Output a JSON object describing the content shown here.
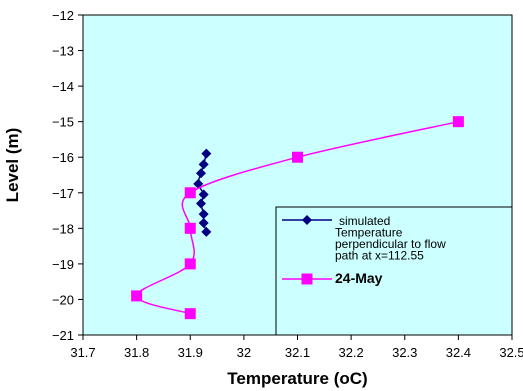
{
  "chart_data": {
    "type": "scatter",
    "title": "",
    "xlabel": "Temperature (oC)",
    "ylabel": "Level (m)",
    "xlim": [
      31.7,
      32.5
    ],
    "ylim": [
      -21,
      -12
    ],
    "x_ticks": [
      "31.7",
      "31.8",
      "31.9",
      "32",
      "32.1",
      "32.2",
      "32.3",
      "32.4",
      "32.5"
    ],
    "y_ticks": [
      "-12",
      "-13",
      "-14",
      "-15",
      "-16",
      "-17",
      "-18",
      "-19",
      "-20",
      "-21"
    ],
    "grid": false,
    "legend_position": "bottom-right",
    "plot_background": "#ccffff",
    "series": [
      {
        "name_lines": [
          "simulated",
          "Temperature",
          "perpendicular to flow",
          "path at x=112.55"
        ],
        "color": "#000080",
        "marker": "diamond",
        "points": [
          {
            "x": 31.93,
            "y": -15.9
          },
          {
            "x": 31.925,
            "y": -16.2
          },
          {
            "x": 31.92,
            "y": -16.45
          },
          {
            "x": 31.915,
            "y": -16.75
          },
          {
            "x": 31.925,
            "y": -17.05
          },
          {
            "x": 31.92,
            "y": -17.3
          },
          {
            "x": 31.925,
            "y": -17.6
          },
          {
            "x": 31.925,
            "y": -17.85
          },
          {
            "x": 31.93,
            "y": -18.1
          }
        ]
      },
      {
        "name_lines": [
          "24-May"
        ],
        "color": "#ff00ff",
        "marker": "square",
        "points": [
          {
            "x": 32.4,
            "y": -15.0
          },
          {
            "x": 32.1,
            "y": -16.0
          },
          {
            "x": 31.9,
            "y": -17.0
          },
          {
            "x": 31.9,
            "y": -18.0
          },
          {
            "x": 31.9,
            "y": -19.0
          },
          {
            "x": 31.8,
            "y": -19.9
          },
          {
            "x": 31.9,
            "y": -20.4
          }
        ]
      }
    ]
  }
}
